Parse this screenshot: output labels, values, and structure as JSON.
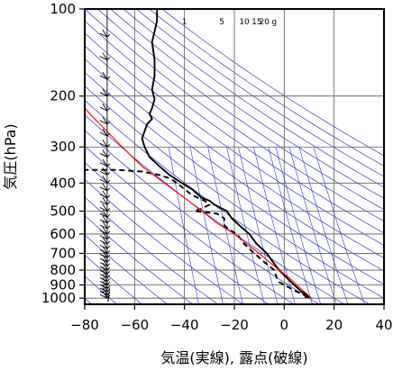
{
  "chart_data": {
    "type": "line",
    "diagram": "emagram",
    "xlabel": "気温(実線), 露点(破線)",
    "ylabel": "気圧(hPa)",
    "xlim": [
      -80,
      40
    ],
    "ylim": [
      1050,
      100
    ],
    "y_scale": "log",
    "x_ticks": [
      -80,
      -60,
      -40,
      -20,
      0,
      20,
      40
    ],
    "x_tick_labels": [
      "−80",
      "−60",
      "−40",
      "−20",
      "0",
      "20",
      "40"
    ],
    "y_ticks": [
      100,
      200,
      300,
      400,
      500,
      600,
      700,
      800,
      900,
      1000
    ],
    "y_tick_labels": [
      "100",
      "200",
      "300",
      "400",
      "500",
      "600",
      "700",
      "800",
      "900",
      "1000"
    ],
    "grid": true,
    "mixing_ratio_labels": [
      {
        "text": "1",
        "x": -40
      },
      {
        "text": "5",
        "x": -25
      },
      {
        "text": "10",
        "x": -16
      },
      {
        "text": "15",
        "x": -11
      },
      {
        "text": "20",
        "x": -8
      },
      {
        "text": "g",
        "x": -4
      }
    ],
    "series": [
      {
        "role": "temperature",
        "style": "solid",
        "color": "#000000",
        "points": [
          [
            10,
            1000
          ],
          [
            9,
            975
          ],
          [
            7,
            950
          ],
          [
            5.5,
            925
          ],
          [
            4,
            900
          ],
          [
            1,
            850
          ],
          [
            -2,
            800
          ],
          [
            -4.5,
            750
          ],
          [
            -7,
            700
          ],
          [
            -11,
            650
          ],
          [
            -14,
            600
          ],
          [
            -18,
            560
          ],
          [
            -21,
            530
          ],
          [
            -23,
            500
          ],
          [
            -28,
            475
          ],
          [
            -30,
            460
          ],
          [
            -33,
            450
          ],
          [
            -37,
            420
          ],
          [
            -41,
            400
          ],
          [
            -46,
            375
          ],
          [
            -50,
            350
          ],
          [
            -54,
            325
          ],
          [
            -56,
            300
          ],
          [
            -57,
            280
          ],
          [
            -56,
            265
          ],
          [
            -55,
            250
          ],
          [
            -53,
            240
          ],
          [
            -54,
            230
          ],
          [
            -53,
            220
          ],
          [
            -52,
            205
          ],
          [
            -53,
            190
          ],
          [
            -52,
            170
          ],
          [
            -52,
            150
          ],
          [
            -53,
            130
          ],
          [
            -51,
            110
          ],
          [
            -51,
            100
          ]
        ]
      },
      {
        "role": "dewpoint",
        "style": "dashed",
        "color": "#000000",
        "points": [
          [
            9,
            1000
          ],
          [
            8,
            975
          ],
          [
            5,
            950
          ],
          [
            0,
            900
          ],
          [
            -2,
            880
          ],
          [
            -3,
            850
          ],
          [
            -4,
            800
          ],
          [
            -8,
            750
          ],
          [
            -12,
            700
          ],
          [
            -16,
            650
          ],
          [
            -19,
            600
          ],
          [
            -22,
            580
          ],
          [
            -24,
            560
          ],
          [
            -24,
            530
          ],
          [
            -27,
            510
          ],
          [
            -31,
            505
          ],
          [
            -36,
            500
          ],
          [
            -33,
            490
          ],
          [
            -30,
            475
          ],
          [
            -32,
            460
          ],
          [
            -37,
            440
          ],
          [
            -40,
            420
          ],
          [
            -43,
            400
          ],
          [
            -46,
            385
          ],
          [
            -50,
            375
          ],
          [
            -57,
            365
          ],
          [
            -67,
            360
          ],
          [
            -77,
            360
          ],
          [
            -80,
            360
          ]
        ]
      },
      {
        "role": "parcel",
        "style": "solid",
        "color": "#ff0000",
        "points": [
          [
            11,
            1000
          ],
          [
            8,
            950
          ],
          [
            5,
            900
          ],
          [
            2,
            850
          ],
          [
            -2,
            800
          ],
          [
            -6,
            750
          ],
          [
            -10,
            700
          ],
          [
            -15,
            650
          ],
          [
            -20,
            600
          ],
          [
            -27,
            550
          ],
          [
            -33,
            500
          ],
          [
            -40,
            450
          ],
          [
            -48,
            400
          ],
          [
            -57,
            350
          ],
          [
            -65,
            300
          ],
          [
            -72,
            260
          ],
          [
            -77,
            235
          ],
          [
            -80,
            220
          ]
        ]
      }
    ],
    "wind_barbs_x": -71
  }
}
